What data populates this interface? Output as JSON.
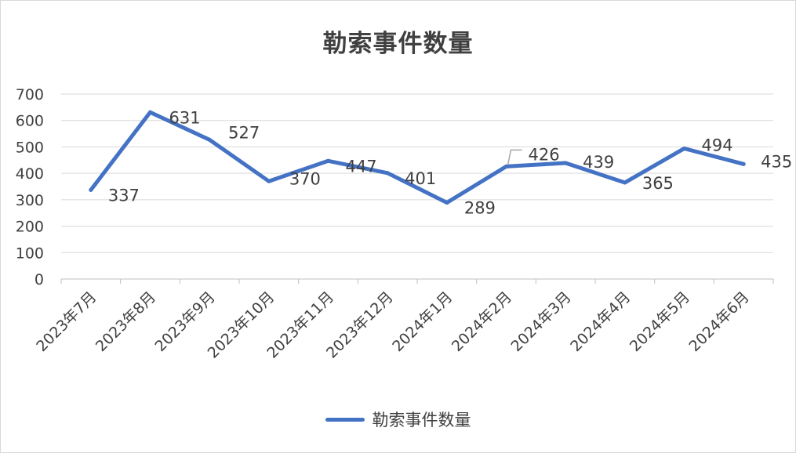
{
  "chart_data": {
    "type": "line",
    "title": "勒索事件数量",
    "categories": [
      "2023年7月",
      "2023年8月",
      "2023年9月",
      "2023年10月",
      "2023年11月",
      "2023年12月",
      "2024年1月",
      "2024年2月",
      "2024年3月",
      "2024年4月",
      "2024年5月",
      "2024年6月"
    ],
    "series": [
      {
        "name": "勒索事件数量",
        "values": [
          337,
          631,
          527,
          370,
          447,
          401,
          289,
          426,
          439,
          365,
          494,
          435
        ],
        "color": "#4472C4"
      }
    ],
    "ylim": [
      0,
      700
    ],
    "yticks": [
      0,
      100,
      200,
      300,
      400,
      500,
      600,
      700
    ],
    "grid": true,
    "legend": "bottom",
    "data_labels": [
      "337",
      "631",
      "527",
      "370",
      "447",
      "401",
      "289",
      "426",
      "439",
      "365",
      "494",
      "435"
    ]
  }
}
